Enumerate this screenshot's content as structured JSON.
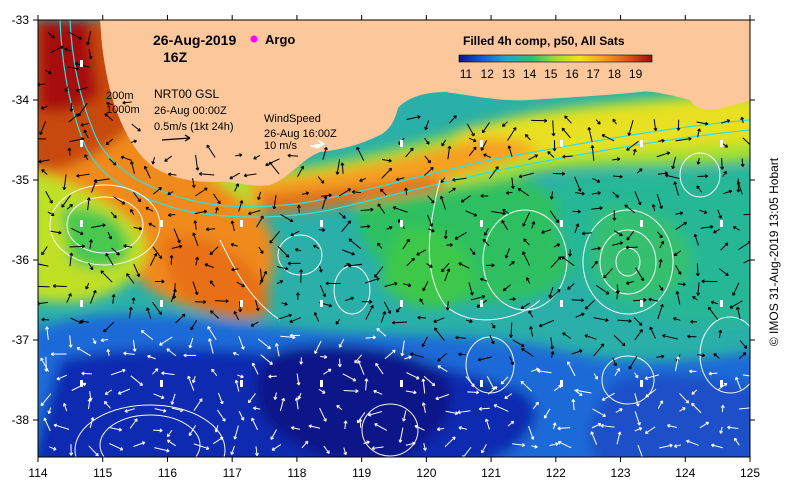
{
  "map": {
    "date": "26-Aug-2019",
    "hour": "16Z",
    "argo_label": "Argo",
    "depth_labels": [
      "200m",
      "1000m"
    ],
    "current_source": "NRT00 GSL",
    "current_time": "26-Aug 00:00Z",
    "current_scale": "0.5m/s (1kt 24h)",
    "wind_title": "WindSpeed",
    "wind_time": "26-Aug 16:00Z",
    "wind_scale": "10 m/s",
    "colorbar_title": "Filled 4h comp, p50, All Sats",
    "colorbar_ticks": [
      "11",
      "12",
      "13",
      "14",
      "15",
      "16",
      "17",
      "18",
      "19"
    ],
    "x_ticks": [
      "114",
      "115",
      "116",
      "117",
      "118",
      "119",
      "120",
      "121",
      "122",
      "123",
      "124",
      "125"
    ],
    "y_ticks": [
      "-33",
      "-34",
      "-35",
      "-36",
      "-37",
      "-38"
    ],
    "credit": "© IMOS 31-Aug-2019 13:05 Hobart",
    "colors": {
      "land": "#fcc89b",
      "sst_19": "#b01010",
      "sst_17": "#f08a1a",
      "sst_16": "#f5d218",
      "sst_15": "#a8e030",
      "sst_14": "#2ec060",
      "sst_13": "#2ab0a8",
      "sst_12": "#1a6ad8",
      "sst_11": "#0c1a9a",
      "argo": "#ff00ff",
      "isobath": "#30e0e0"
    }
  }
}
